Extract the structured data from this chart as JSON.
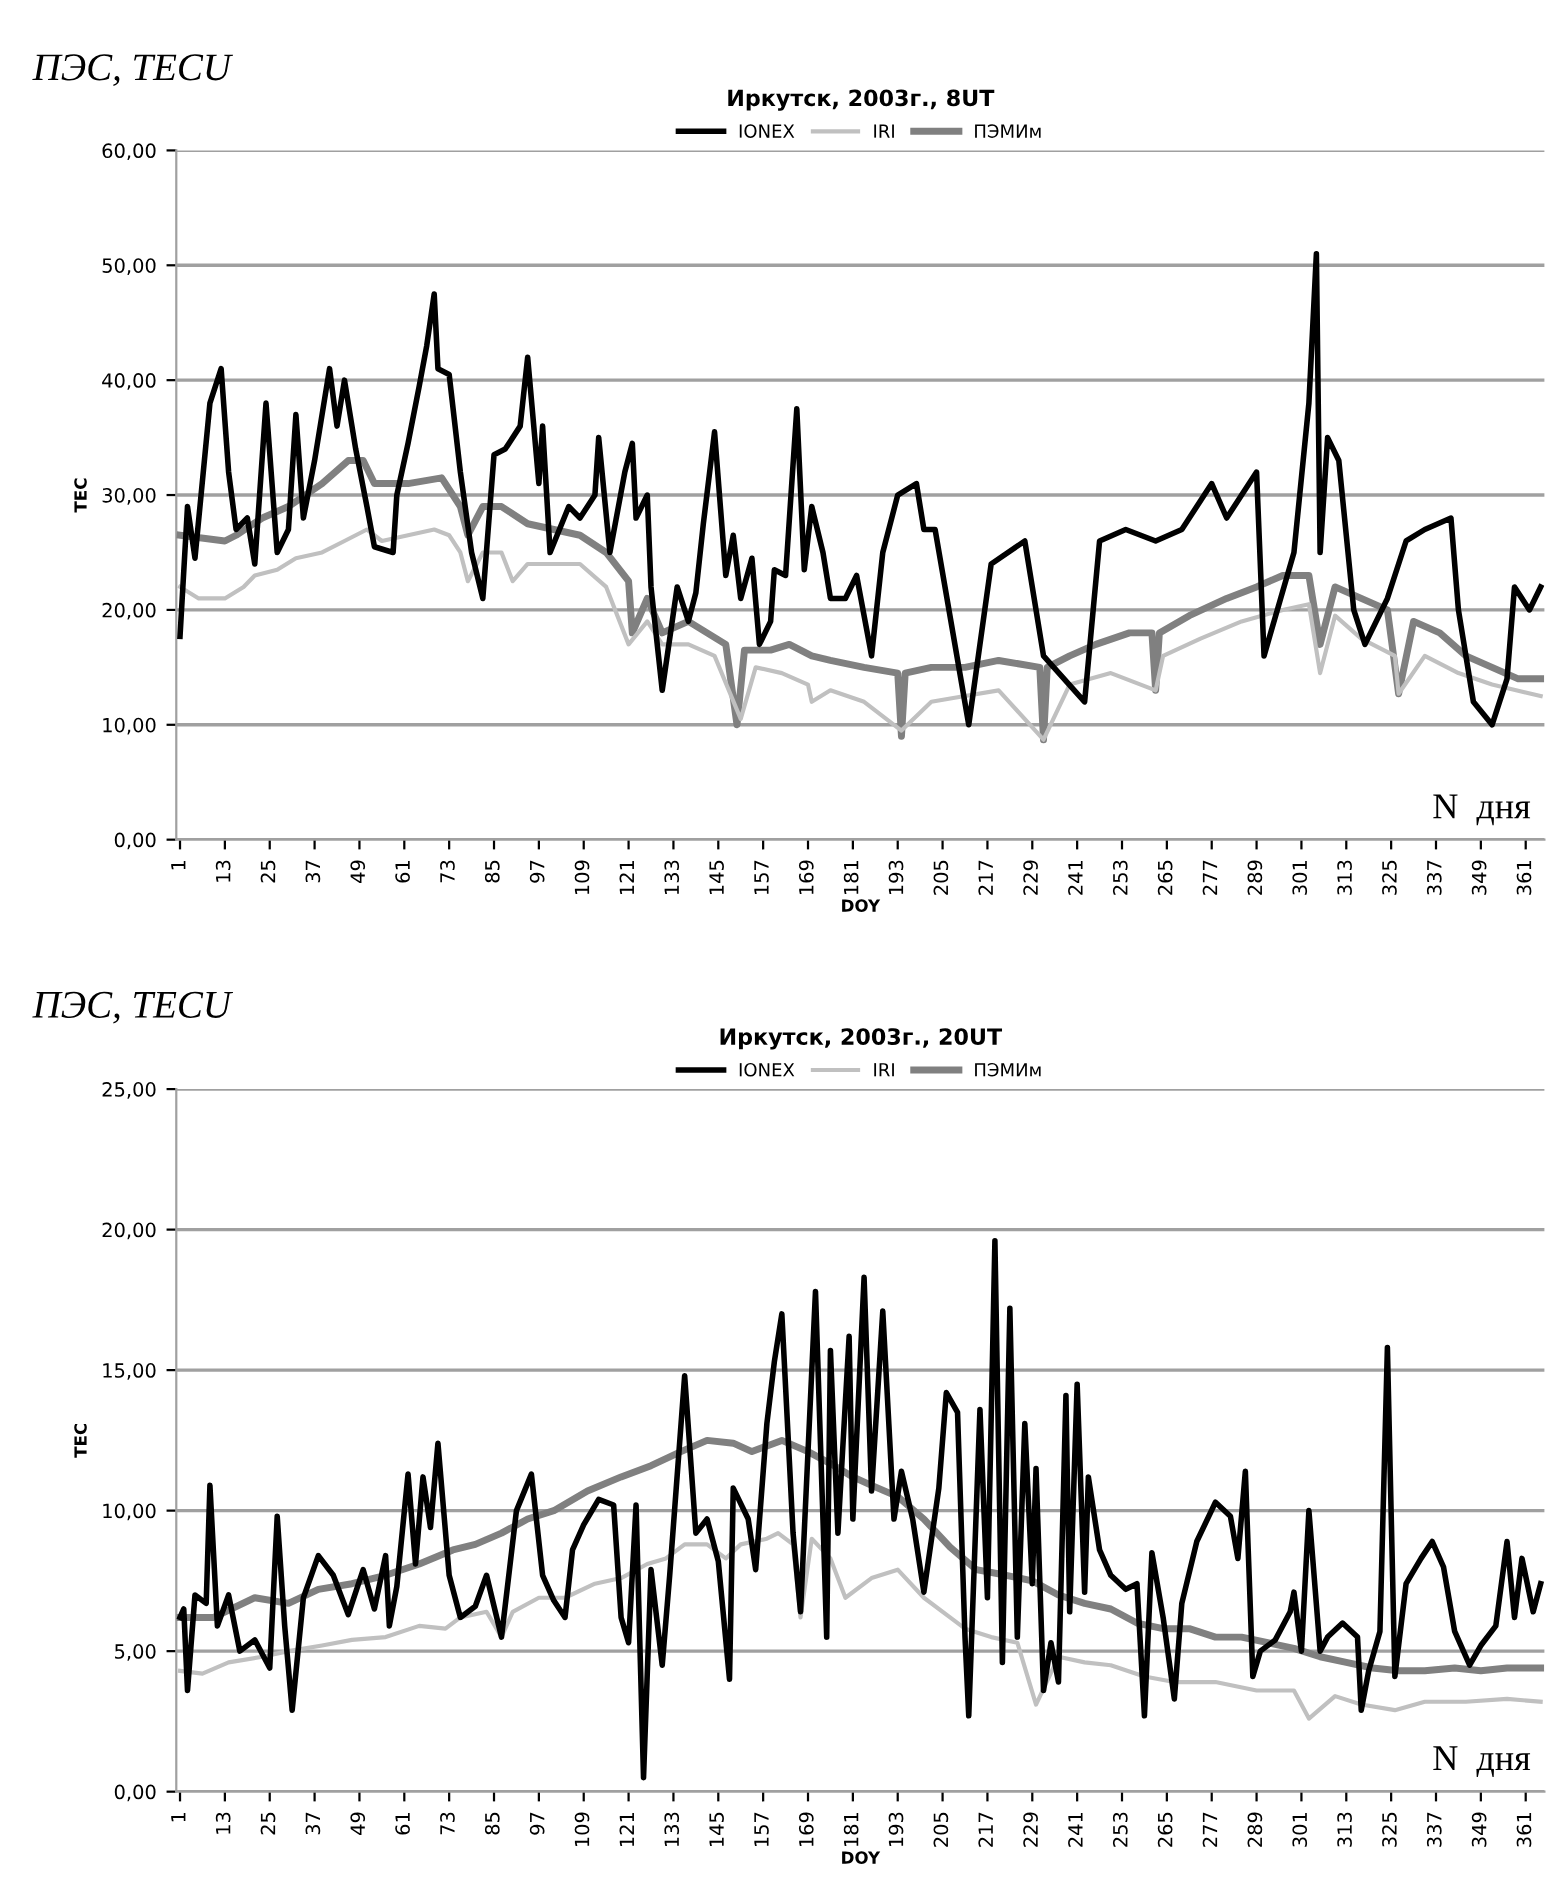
{
  "chart_data": [
    {
      "type": "line",
      "title": "Иркутск, 2003г., 8UT",
      "xlabel": "DOY",
      "ylabel": "TEC",
      "legend": "top",
      "grid": "y",
      "annotations": [
        "ПЭС, TECU",
        "N  дня"
      ],
      "xlim": [
        0,
        366
      ],
      "xticks": [
        1,
        13,
        25,
        37,
        49,
        61,
        73,
        85,
        97,
        109,
        121,
        133,
        145,
        157,
        169,
        181,
        193,
        205,
        217,
        229,
        241,
        253,
        265,
        277,
        289,
        301,
        313,
        325,
        337,
        349,
        361
      ],
      "ylim": [
        0,
        60
      ],
      "yticks": [
        {
          "value": 0,
          "label": "0,00"
        },
        {
          "value": 10,
          "label": "10,00"
        },
        {
          "value": 20,
          "label": "20,00"
        },
        {
          "value": 30,
          "label": "30,00"
        },
        {
          "value": 40,
          "label": "40,00"
        },
        {
          "value": 50,
          "label": "50,00"
        },
        {
          "value": 60,
          "label": "60,00"
        }
      ],
      "series": [
        {
          "name": "IONEX",
          "color": "#000000",
          "x": [
            1,
            3,
            5,
            9,
            12,
            14,
            16,
            19,
            21,
            24,
            27,
            30,
            32,
            34,
            37,
            41,
            43,
            45,
            48,
            51,
            53,
            58,
            59,
            62,
            65,
            67,
            69,
            70,
            73,
            76,
            79,
            82,
            85,
            88,
            92,
            94,
            97,
            98,
            100,
            105,
            108,
            112,
            113,
            116,
            120,
            122,
            123,
            126,
            127,
            129,
            130,
            134,
            137,
            139,
            141,
            144,
            147,
            149,
            151,
            154,
            156,
            159,
            160,
            163,
            166,
            168,
            170,
            173,
            175,
            179,
            182,
            186,
            189,
            193,
            198,
            200,
            203,
            212,
            218,
            227,
            232,
            243,
            247,
            254,
            262,
            269,
            277,
            281,
            289,
            291,
            299,
            303,
            305,
            306,
            308,
            311,
            315,
            318,
            324,
            329,
            334,
            341,
            343,
            347,
            352,
            356,
            358,
            362,
            365
          ],
          "values": [
            17.7,
            29,
            24.5,
            38,
            41,
            32,
            27,
            28,
            24,
            38,
            25,
            27,
            37,
            28,
            33,
            41,
            36,
            40,
            34,
            29,
            25.5,
            25,
            30,
            34.5,
            39.5,
            43,
            47.5,
            41,
            40.5,
            32,
            25,
            21,
            33.5,
            34,
            36,
            42,
            31,
            36,
            25,
            29,
            28,
            30,
            35,
            25,
            32,
            34.5,
            28,
            30,
            22,
            16,
            13,
            22,
            19,
            21.5,
            27.5,
            35.5,
            23,
            26.5,
            21,
            24.5,
            17,
            19,
            23.5,
            23,
            37.5,
            23.5,
            29,
            25,
            21,
            21,
            23,
            16,
            25,
            30,
            31,
            27,
            27,
            10,
            24,
            26,
            16,
            12,
            26,
            27,
            26,
            27,
            31,
            28,
            32,
            16,
            25,
            38,
            51,
            25,
            35,
            33,
            20,
            17,
            21,
            26,
            27,
            28,
            20,
            12,
            10,
            14,
            22,
            20,
            22
          ]
        },
        {
          "name": "IRI",
          "color": "#c0c0c0",
          "x": [
            1,
            6,
            13,
            18,
            21,
            27,
            32,
            39,
            45,
            51,
            55,
            62,
            69,
            73,
            76,
            78,
            82,
            87,
            90,
            94,
            101,
            108,
            115,
            121,
            126,
            130,
            137,
            144,
            151,
            155,
            162,
            169,
            170,
            175,
            184,
            194,
            202,
            211,
            220,
            232,
            239,
            250,
            262,
            264,
            274,
            285,
            296,
            303,
            306,
            310,
            317,
            326,
            327,
            334,
            343,
            352,
            365
          ],
          "values": [
            22,
            21,
            21,
            22,
            23,
            23.5,
            24.5,
            25,
            26,
            27,
            26,
            26.5,
            27,
            26.5,
            25,
            22.5,
            25,
            25,
            22.5,
            24,
            24,
            24,
            22,
            17,
            19,
            17,
            17,
            16,
            10.5,
            15,
            14.5,
            13.5,
            12,
            13,
            12,
            9.5,
            12,
            12.5,
            13,
            8.7,
            13.5,
            14.5,
            13,
            16,
            17.5,
            19,
            20,
            20.5,
            14.5,
            19.5,
            17.5,
            16,
            12.7,
            16,
            14.5,
            13.5,
            12.5
          ]
        },
        {
          "name": "ПЭМИм",
          "color": "#808080",
          "x": [
            1,
            13,
            16,
            23,
            30,
            39,
            46,
            50,
            53,
            62,
            71,
            76,
            78,
            82,
            87,
            94,
            101,
            108,
            115,
            121,
            122,
            126,
            130,
            137,
            142,
            147,
            150,
            152,
            159,
            164,
            170,
            175,
            184,
            193,
            194,
            195,
            202,
            211,
            220,
            231,
            232,
            233,
            239,
            246,
            255,
            261,
            262,
            263,
            271,
            281,
            289,
            296,
            303,
            306,
            310,
            317,
            324,
            327,
            331,
            338,
            345,
            352,
            359,
            365
          ],
          "values": [
            26.5,
            26,
            26.5,
            28,
            29,
            31,
            33,
            33,
            31,
            31,
            31.5,
            29,
            26.5,
            29,
            29,
            27.5,
            27,
            26.5,
            25,
            22.5,
            18,
            21,
            18,
            19,
            18,
            17,
            10,
            16.5,
            16.5,
            17,
            16,
            15.6,
            15,
            14.5,
            9,
            14.5,
            15,
            15,
            15.6,
            15,
            8.7,
            15,
            16,
            17,
            18,
            18,
            13,
            18,
            19.5,
            21,
            22,
            23,
            23,
            17,
            22,
            21,
            20,
            12.7,
            19,
            18,
            16,
            15,
            14,
            14
          ]
        }
      ]
    },
    {
      "type": "line",
      "title": "Иркутск, 2003г., 20UT",
      "xlabel": "DOY",
      "ylabel": "TEC",
      "legend": "top",
      "grid": "y",
      "annotations": [
        "ПЭС, TECU",
        "N  дня"
      ],
      "xlim": [
        0,
        366
      ],
      "xticks": [
        1,
        13,
        25,
        37,
        49,
        61,
        73,
        85,
        97,
        109,
        121,
        133,
        145,
        157,
        169,
        181,
        193,
        205,
        217,
        229,
        241,
        253,
        265,
        277,
        289,
        301,
        313,
        325,
        337,
        349,
        361
      ],
      "ylim": [
        0,
        25
      ],
      "yticks": [
        {
          "value": 0,
          "label": "0,00"
        },
        {
          "value": 5,
          "label": "5,00"
        },
        {
          "value": 10,
          "label": "10,00"
        },
        {
          "value": 15,
          "label": "15,00"
        },
        {
          "value": 20,
          "label": "20,00"
        },
        {
          "value": 25,
          "label": "25,00"
        }
      ],
      "series": [
        {
          "name": "IONEX",
          "color": "#000000",
          "x": [
            1,
            2,
            3,
            5,
            8,
            9,
            11,
            14,
            17,
            21,
            25,
            27,
            29,
            31,
            34,
            38,
            42,
            46,
            50,
            53,
            56,
            57,
            59,
            62,
            64,
            66,
            68,
            70,
            73,
            76,
            80,
            83,
            87,
            91,
            95,
            98,
            101,
            104,
            106,
            109,
            113,
            117,
            119,
            121,
            123,
            125,
            127,
            130,
            132,
            136,
            139,
            142,
            145,
            148,
            149,
            153,
            155,
            158,
            160,
            162,
            165,
            167,
            171,
            173,
            174,
            175,
            177,
            180,
            181,
            184,
            186,
            189,
            192,
            194,
            197,
            200,
            204,
            206,
            209,
            211,
            212,
            215,
            217,
            219,
            221,
            223,
            225,
            227,
            229,
            230,
            232,
            234,
            236,
            238,
            239,
            241,
            243,
            244,
            247,
            250,
            254,
            257,
            259,
            261,
            264,
            267,
            269,
            273,
            278,
            282,
            284,
            286,
            288,
            290,
            294,
            298,
            299,
            301,
            303,
            306,
            308,
            312,
            316,
            317,
            319,
            322,
            324,
            326,
            329,
            333,
            336,
            339,
            342,
            346,
            349,
            353,
            356,
            358,
            360,
            363,
            365
          ],
          "values": [
            6.2,
            6.5,
            3.6,
            7,
            6.7,
            10.9,
            5.9,
            7,
            5,
            5.4,
            4.4,
            9.8,
            5.9,
            2.9,
            6.9,
            8.4,
            7.7,
            6.3,
            7.9,
            6.5,
            8.4,
            5.9,
            7.3,
            11.3,
            8.1,
            11.2,
            9.4,
            12.4,
            7.7,
            6.2,
            6.6,
            7.7,
            5.5,
            10,
            11.3,
            7.7,
            6.8,
            6.2,
            8.6,
            9.5,
            10.4,
            10.2,
            6.2,
            5.3,
            10.2,
            0.5,
            7.9,
            4.5,
            7.7,
            14.8,
            9.2,
            9.7,
            8.2,
            4,
            10.8,
            9.7,
            7.9,
            13.1,
            15.3,
            17,
            9.2,
            6.4,
            17.8,
            9.7,
            5.5,
            15.7,
            9.2,
            16.2,
            9.7,
            18.3,
            10.7,
            17.1,
            9.7,
            11.4,
            9.7,
            7.1,
            10.8,
            14.2,
            13.5,
            5.5,
            2.7,
            13.6,
            6.9,
            19.6,
            4.6,
            17.2,
            5.5,
            13.1,
            7.4,
            11.5,
            3.6,
            5.3,
            3.9,
            14.1,
            6.4,
            14.5,
            7.1,
            11.2,
            8.6,
            7.7,
            7.2,
            7.4,
            2.7,
            8.5,
            6.2,
            3.3,
            6.7,
            8.9,
            10.3,
            9.8,
            8.3,
            11.4,
            4.1,
            5,
            5.4,
            6.4,
            7.1,
            5,
            10,
            5,
            5.5,
            6,
            5.5,
            2.9,
            4.3,
            5.7,
            15.8,
            4.1,
            7.4,
            8.3,
            8.9,
            8,
            5.7,
            4.5,
            5.2,
            5.9,
            8.9,
            6.2,
            8.3,
            6.4,
            7.4
          ]
        },
        {
          "name": "IRI",
          "color": "#c0c0c0",
          "x": [
            1,
            7,
            14,
            23,
            30,
            39,
            47,
            56,
            65,
            72,
            76,
            83,
            87,
            90,
            97,
            104,
            112,
            119,
            126,
            131,
            136,
            142,
            147,
            151,
            158,
            161,
            165,
            167,
            170,
            175,
            179,
            186,
            193,
            200,
            207,
            211,
            218,
            225,
            230,
            236,
            243,
            250,
            259,
            267,
            278,
            289,
            299,
            303,
            310,
            317,
            326,
            334,
            345,
            356,
            365
          ],
          "values": [
            4.3,
            4.2,
            4.6,
            4.8,
            5,
            5.2,
            5.4,
            5.5,
            5.9,
            5.8,
            6.2,
            6.4,
            5.5,
            6.4,
            6.9,
            6.9,
            7.4,
            7.6,
            8.1,
            8.3,
            8.8,
            8.8,
            8.3,
            8.8,
            9,
            9.2,
            8.8,
            6.2,
            9,
            8.3,
            6.9,
            7.6,
            7.9,
            6.9,
            6.2,
            5.8,
            5.5,
            5.3,
            3.1,
            4.8,
            4.6,
            4.5,
            4.1,
            3.9,
            3.9,
            3.6,
            3.6,
            2.6,
            3.4,
            3.1,
            2.9,
            3.2,
            3.2,
            3.3,
            3.2
          ]
        },
        {
          "name": "ПЭМИм",
          "color": "#808080",
          "x": [
            1,
            10,
            21,
            30,
            38,
            47,
            56,
            65,
            74,
            80,
            87,
            94,
            101,
            110,
            119,
            127,
            135,
            142,
            149,
            154,
            162,
            169,
            176,
            181,
            186,
            193,
            200,
            207,
            214,
            222,
            229,
            236,
            243,
            250,
            257,
            264,
            271,
            278,
            285,
            292,
            299,
            306,
            313,
            320,
            327,
            334,
            342,
            349,
            356,
            365
          ],
          "values": [
            6.2,
            6.2,
            6.9,
            6.7,
            7.2,
            7.4,
            7.7,
            8.1,
            8.6,
            8.8,
            9.2,
            9.7,
            10,
            10.7,
            11.2,
            11.6,
            12.1,
            12.5,
            12.4,
            12.1,
            12.5,
            12.1,
            11.6,
            11.2,
            10.9,
            10.5,
            9.7,
            8.7,
            7.9,
            7.7,
            7.5,
            7,
            6.7,
            6.5,
            6,
            5.8,
            5.8,
            5.5,
            5.5,
            5.3,
            5.1,
            4.8,
            4.6,
            4.4,
            4.3,
            4.3,
            4.4,
            4.3,
            4.4,
            4.4
          ]
        }
      ]
    }
  ]
}
